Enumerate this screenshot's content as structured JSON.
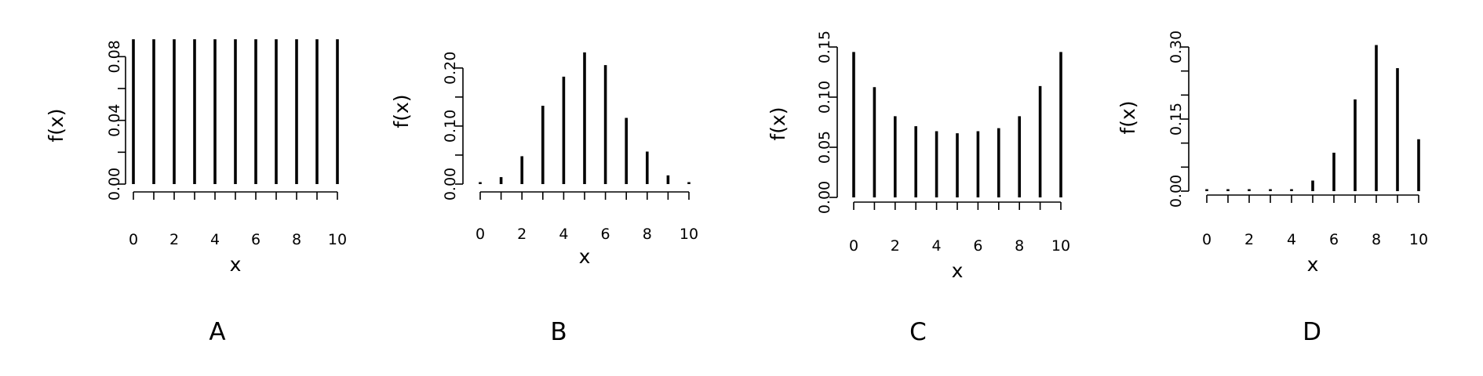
{
  "chart_data": [
    {
      "type": "bar",
      "panel_label": "A",
      "xlabel": "x",
      "ylabel": "f(x)",
      "x": [
        0,
        1,
        2,
        3,
        4,
        5,
        6,
        7,
        8,
        9,
        10
      ],
      "values": [
        0.0909,
        0.0909,
        0.0909,
        0.0909,
        0.0909,
        0.0909,
        0.0909,
        0.0909,
        0.0909,
        0.0909,
        0.0909
      ],
      "xlim": [
        0,
        10
      ],
      "ylim": [
        0,
        0.09
      ],
      "xticks": [
        0,
        2,
        4,
        6,
        8,
        10
      ],
      "xtick_labels": [
        "0",
        "2",
        "4",
        "6",
        "8",
        "10"
      ],
      "yticks": [
        0,
        0.02,
        0.04,
        0.06,
        0.08
      ],
      "ytick_labels": [
        "0.00",
        "",
        "0.04",
        "",
        "0.08"
      ],
      "grid": false
    },
    {
      "type": "bar",
      "panel_label": "B",
      "xlabel": "x",
      "ylabel": "f(x)",
      "x": [
        0,
        1,
        2,
        3,
        4,
        5,
        6,
        7,
        8,
        9,
        10
      ],
      "values": [
        0.002,
        0.012,
        0.048,
        0.135,
        0.185,
        0.227,
        0.205,
        0.114,
        0.056,
        0.015,
        0.002
      ],
      "xlim": [
        0,
        10
      ],
      "ylim": [
        0,
        0.22
      ],
      "xticks": [
        0,
        2,
        4,
        6,
        8,
        10
      ],
      "xtick_labels": [
        "0",
        "2",
        "4",
        "6",
        "8",
        "10"
      ],
      "yticks": [
        0,
        0.05,
        0.1,
        0.15,
        0.2
      ],
      "ytick_labels": [
        "0.00",
        "",
        "0.10",
        "",
        "0.20"
      ],
      "grid": false
    },
    {
      "type": "bar",
      "panel_label": "C",
      "xlabel": "x",
      "ylabel": "f(x)",
      "x": [
        0,
        1,
        2,
        3,
        4,
        5,
        6,
        7,
        8,
        9,
        10
      ],
      "values": [
        0.145,
        0.11,
        0.081,
        0.071,
        0.066,
        0.064,
        0.066,
        0.069,
        0.081,
        0.111,
        0.145
      ],
      "xlim": [
        0,
        10
      ],
      "ylim": [
        0,
        0.15
      ],
      "xticks": [
        0,
        2,
        4,
        6,
        8,
        10
      ],
      "xtick_labels": [
        "0",
        "2",
        "4",
        "6",
        "8",
        "10"
      ],
      "yticks": [
        0,
        0.05,
        0.1,
        0.15
      ],
      "ytick_labels": [
        "0.00",
        "0.05",
        "0.10",
        "0.15"
      ],
      "grid": false
    },
    {
      "type": "bar",
      "panel_label": "D",
      "xlabel": "x",
      "ylabel": "f(x)",
      "x": [
        0,
        1,
        2,
        3,
        4,
        5,
        6,
        7,
        8,
        9,
        10
      ],
      "values": [
        0.0005,
        0.0005,
        0.0005,
        0.0005,
        0.004,
        0.022,
        0.08,
        0.191,
        0.304,
        0.256,
        0.108
      ],
      "xlim": [
        0,
        10
      ],
      "ylim": [
        0,
        0.3
      ],
      "xticks": [
        0,
        2,
        4,
        6,
        8,
        10
      ],
      "xtick_labels": [
        "0",
        "2",
        "4",
        "6",
        "8",
        "10"
      ],
      "yticks": [
        0,
        0.05,
        0.1,
        0.15,
        0.2,
        0.25,
        0.3
      ],
      "ytick_labels": [
        "0.00",
        "",
        "",
        "0.15",
        "",
        "",
        "0.30"
      ],
      "grid": false
    }
  ]
}
